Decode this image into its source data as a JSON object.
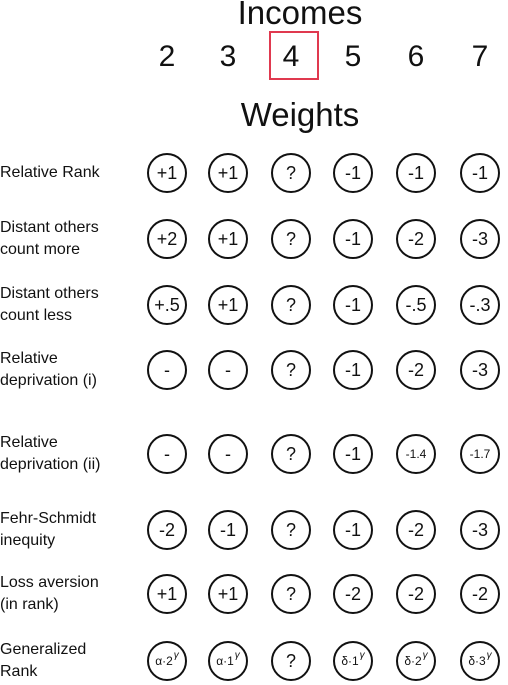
{
  "incomes_title": "Incomes",
  "weights_title": "Weights",
  "incomes": [
    "2",
    "3",
    "4",
    "5",
    "6",
    "7"
  ],
  "highlighted_income": "4",
  "highlight_color": "#e0394f",
  "rows": [
    {
      "label_lines": [
        "Relative Rank"
      ],
      "weights": [
        "+1",
        "+1",
        "?",
        "-1",
        "-1",
        "-1"
      ]
    },
    {
      "label_lines": [
        "Distant others",
        "count more"
      ],
      "weights": [
        "+2",
        "+1",
        "?",
        "-1",
        "-2",
        "-3"
      ]
    },
    {
      "label_lines": [
        "Distant others",
        "count less"
      ],
      "weights": [
        "+.5",
        "+1",
        "?",
        "-1",
        "-.5",
        "-.3"
      ]
    },
    {
      "label_lines": [
        "Relative",
        "deprivation (i)"
      ],
      "weights": [
        "-",
        "-",
        "?",
        "-1",
        "-2",
        "-3"
      ]
    },
    {
      "label_lines": [
        "Relative",
        "deprivation (ii)"
      ],
      "weights": [
        "-",
        "-",
        "?",
        "-1",
        "-1.4",
        "-1.7"
      ]
    },
    {
      "label_lines": [
        "Fehr-Schmidt",
        "inequity"
      ],
      "weights": [
        "-2",
        "-1",
        "?",
        "-1",
        "-2",
        "-3"
      ]
    },
    {
      "label_lines": [
        "Loss aversion",
        "(in rank)"
      ],
      "weights": [
        "+1",
        "+1",
        "?",
        "-2",
        "-2",
        "-2"
      ]
    },
    {
      "label_lines": [
        "Generalized",
        "Rank"
      ],
      "weights": [
        {
          "base": "α·2",
          "sup": "γ"
        },
        {
          "base": "α·1",
          "sup": "γ"
        },
        "?",
        {
          "base": "δ·1",
          "sup": "γ"
        },
        {
          "base": "δ·2",
          "sup": "γ"
        },
        {
          "base": "δ·3",
          "sup": "γ"
        }
      ]
    }
  ]
}
